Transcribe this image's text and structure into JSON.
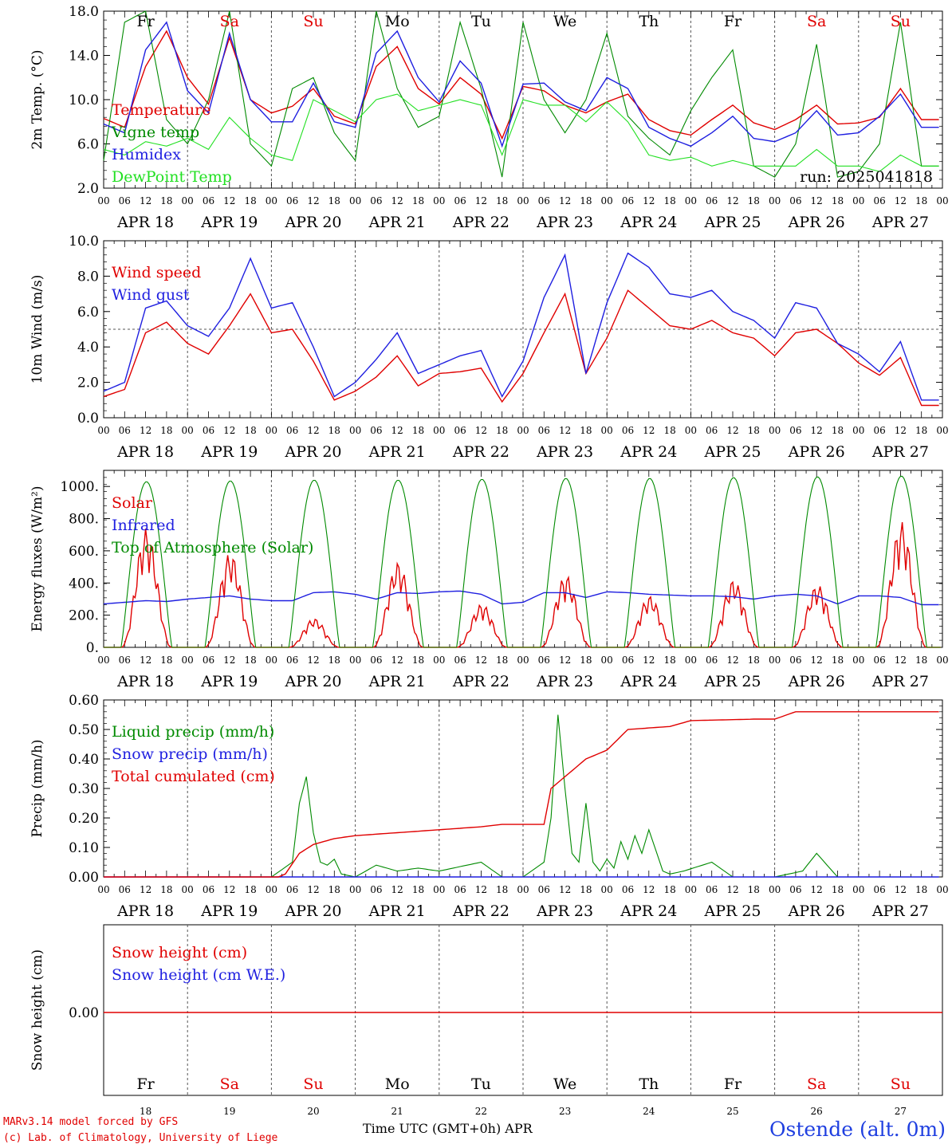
{
  "colors": {
    "red": "#e00000",
    "green": "#008a00",
    "blue": "#1f1fe0",
    "lightgreen": "#22e022",
    "grid": "#555555"
  },
  "day_labels": [
    {
      "name": "Fr",
      "color": "#000000"
    },
    {
      "name": "Sa",
      "color": "#e00000"
    },
    {
      "name": "Su",
      "color": "#e00000"
    },
    {
      "name": "Mo",
      "color": "#000000"
    },
    {
      "name": "Tu",
      "color": "#000000"
    },
    {
      "name": "We",
      "color": "#000000"
    },
    {
      "name": "Th",
      "color": "#000000"
    },
    {
      "name": "Fr",
      "color": "#000000"
    },
    {
      "name": "Sa",
      "color": "#e00000"
    },
    {
      "name": "Su",
      "color": "#e00000"
    }
  ],
  "date_labels": [
    "APR 18",
    "APR 19",
    "APR 20",
    "APR 21",
    "APR 22",
    "APR 23",
    "APR 24",
    "APR 25",
    "APR 26",
    "APR 27"
  ],
  "hour_labels": [
    "00",
    "06",
    "12",
    "18"
  ],
  "hour_end_label": "00",
  "bottom_day_numbers": [
    "18",
    "19",
    "20",
    "21",
    "22",
    "23",
    "24",
    "25",
    "26",
    "27"
  ],
  "run_label": "run: 2025041818",
  "footer": {
    "model_line": "MARv3.14 model forced by GFS",
    "copyright_line": "(c) Lab. of Climatology, University of Liege",
    "axis_title": "Time UTC (GMT+0h) APR",
    "station": "Ostende (alt. 0m)"
  },
  "chart_data": [
    {
      "type": "line",
      "ylabel": "2m Temp. (°C)",
      "ylim": [
        2,
        18
      ],
      "yticks": [
        "2.0",
        "6.0",
        "10.0",
        "14.0",
        "18.0"
      ],
      "x_unit": "hours since APR 18 00 UTC",
      "series": [
        {
          "name": "Temperature",
          "color": "red",
          "x": [
            0,
            6,
            12,
            18,
            24,
            30,
            36,
            42,
            48,
            54,
            60,
            66,
            72,
            78,
            84,
            90,
            96,
            102,
            108,
            114,
            120,
            126,
            132,
            138,
            144,
            150,
            156,
            162,
            168,
            174,
            180,
            186,
            192,
            198,
            204,
            210,
            216,
            222,
            228,
            234
          ],
          "values": [
            8.3,
            7.5,
            13,
            16.2,
            12,
            9.6,
            15.6,
            10,
            8.8,
            9.4,
            11,
            8.5,
            7.8,
            13,
            14.8,
            11,
            9.6,
            12,
            10.5,
            6.5,
            11.2,
            10.8,
            9.5,
            8.8,
            9.8,
            10.5,
            8.2,
            7.2,
            6.8,
            8.2,
            9.5,
            7.9,
            7.3,
            8.2,
            9.5,
            7.8,
            7.9,
            8.4,
            11,
            8.2
          ]
        },
        {
          "name": "Vigne temp",
          "color": "green",
          "x": [
            0,
            6,
            12,
            18,
            24,
            30,
            36,
            42,
            48,
            54,
            60,
            66,
            72,
            78,
            84,
            90,
            96,
            102,
            108,
            114,
            120,
            126,
            132,
            138,
            144,
            150,
            156,
            162,
            168,
            174,
            180,
            186,
            192,
            198,
            204,
            210,
            216,
            222,
            228,
            234
          ],
          "values": [
            4.5,
            17,
            18,
            8.2,
            6,
            10,
            18,
            6,
            4,
            11,
            12,
            7,
            4.5,
            18,
            11,
            7.5,
            8.5,
            17,
            11,
            3,
            17,
            10,
            7,
            10,
            16,
            8.5,
            6.5,
            5,
            9,
            12,
            14.5,
            4,
            3,
            6,
            15,
            3,
            3.5,
            6,
            17,
            4
          ]
        },
        {
          "name": "Humidex",
          "color": "blue",
          "x": [
            0,
            6,
            12,
            18,
            24,
            30,
            36,
            42,
            48,
            54,
            60,
            66,
            72,
            78,
            84,
            90,
            96,
            102,
            108,
            114,
            120,
            126,
            132,
            138,
            144,
            150,
            156,
            162,
            168,
            174,
            180,
            186,
            192,
            198,
            204,
            210,
            216,
            222,
            228,
            234
          ],
          "values": [
            7.8,
            7,
            14.5,
            17,
            10.8,
            8.8,
            16,
            10,
            8,
            8,
            11.5,
            8,
            7.5,
            14.2,
            16.2,
            12,
            9.8,
            13.5,
            11.5,
            5.8,
            11.4,
            11.5,
            9.8,
            9,
            12,
            11,
            7.5,
            6.5,
            5.8,
            7,
            8.5,
            6.5,
            6.2,
            7,
            9,
            6.8,
            7,
            8.5,
            10.5,
            7.5
          ]
        },
        {
          "name": "DewPoint Temp",
          "color": "lightgreen",
          "x": [
            0,
            6,
            12,
            18,
            24,
            30,
            36,
            42,
            48,
            54,
            60,
            66,
            72,
            78,
            84,
            90,
            96,
            102,
            108,
            114,
            120,
            126,
            132,
            138,
            144,
            150,
            156,
            162,
            168,
            174,
            180,
            186,
            192,
            198,
            204,
            210,
            216,
            222,
            228,
            234
          ],
          "values": [
            5.5,
            5,
            6.2,
            5.8,
            6.5,
            5.5,
            8.4,
            6.5,
            5,
            4.5,
            10,
            9,
            8,
            10,
            10.5,
            9,
            9.5,
            10,
            9.5,
            5,
            10,
            9.5,
            9.5,
            8,
            9.8,
            8,
            5,
            4.5,
            4.8,
            4,
            4.5,
            4,
            4,
            4,
            5.5,
            4,
            4,
            3.5,
            5,
            4
          ]
        }
      ]
    },
    {
      "type": "line",
      "ylabel": "10m Wind (m/s)",
      "ylim": [
        0,
        10
      ],
      "yticks": [
        "0.0",
        "2.0",
        "4.0",
        "6.0",
        "8.0",
        "10.0"
      ],
      "reference_line": 5,
      "series": [
        {
          "name": "Wind speed",
          "color": "red",
          "x": [
            0,
            6,
            12,
            18,
            24,
            30,
            36,
            42,
            48,
            54,
            60,
            66,
            72,
            78,
            84,
            90,
            96,
            102,
            108,
            114,
            120,
            126,
            132,
            138,
            144,
            150,
            156,
            162,
            168,
            174,
            180,
            186,
            192,
            198,
            204,
            210,
            216,
            222,
            228,
            234
          ],
          "values": [
            1.2,
            1.6,
            4.8,
            5.4,
            4.2,
            3.6,
            5.2,
            7,
            4.8,
            5,
            3.2,
            1,
            1.5,
            2.3,
            3.5,
            1.8,
            2.5,
            2.6,
            2.8,
            0.9,
            2.5,
            4.8,
            7,
            2.5,
            4.5,
            7.2,
            6.2,
            5.2,
            5,
            5.5,
            4.8,
            4.5,
            3.5,
            4.8,
            5,
            4.2,
            3.1,
            2.4,
            3.4,
            0.7
          ]
        },
        {
          "name": "Wind gust",
          "color": "blue",
          "x": [
            0,
            6,
            12,
            18,
            24,
            30,
            36,
            42,
            48,
            54,
            60,
            66,
            72,
            78,
            84,
            90,
            96,
            102,
            108,
            114,
            120,
            126,
            132,
            138,
            144,
            150,
            156,
            162,
            168,
            174,
            180,
            186,
            192,
            198,
            204,
            210,
            216,
            222,
            228,
            234
          ],
          "values": [
            1.5,
            2,
            6.2,
            6.6,
            5.2,
            4.6,
            6.2,
            9,
            6.2,
            6.5,
            4,
            1.2,
            2,
            3.3,
            4.8,
            2.5,
            3,
            3.5,
            3.8,
            1.2,
            3.2,
            6.8,
            9.2,
            2.5,
            6.5,
            9.3,
            8.5,
            7,
            6.8,
            7.2,
            6,
            5.5,
            4.5,
            6.5,
            6.2,
            4.2,
            3.6,
            2.6,
            4.3,
            1
          ]
        }
      ]
    },
    {
      "type": "line",
      "ylabel": "Energy fluxes (W/m²)",
      "ylim": [
        0,
        1100
      ],
      "yticks": [
        "0.",
        "200.",
        "400.",
        "600.",
        "800.",
        "1000."
      ],
      "series": [
        {
          "name": "Solar",
          "color": "red",
          "daily_peaks": [
            740,
            590,
            180,
            530,
            270,
            450,
            320,
            420,
            390,
            780
          ]
        },
        {
          "name": "Infrared",
          "color": "blue",
          "x": [
            0,
            6,
            12,
            18,
            24,
            30,
            36,
            42,
            48,
            54,
            60,
            66,
            72,
            78,
            84,
            90,
            96,
            102,
            108,
            114,
            120,
            126,
            132,
            138,
            144,
            150,
            156,
            162,
            168,
            174,
            180,
            186,
            192,
            198,
            204,
            210,
            216,
            222,
            228,
            234
          ],
          "values": [
            270,
            280,
            290,
            285,
            300,
            310,
            320,
            300,
            290,
            290,
            340,
            345,
            330,
            300,
            340,
            335,
            345,
            350,
            330,
            270,
            280,
            340,
            340,
            310,
            345,
            340,
            330,
            325,
            320,
            320,
            315,
            300,
            320,
            330,
            320,
            270,
            320,
            320,
            310,
            265
          ]
        },
        {
          "name": "Top of Atmosphere (Solar)",
          "color": "green",
          "daily_peaks": [
            1030,
            1035,
            1040,
            1040,
            1045,
            1050,
            1050,
            1055,
            1060,
            1065
          ]
        }
      ]
    },
    {
      "type": "line",
      "ylabel": "Precip (mm/h)",
      "ylim": [
        0,
        0.6
      ],
      "yticks": [
        "0.00",
        "0.10",
        "0.20",
        "0.30",
        "0.40",
        "0.50",
        "0.60"
      ],
      "series": [
        {
          "name": "Liquid precip (mm/h)",
          "color": "green",
          "x": [
            0,
            48,
            54,
            56,
            58,
            60,
            62,
            64,
            66,
            68,
            72,
            78,
            84,
            90,
            96,
            108,
            114,
            120,
            126,
            128,
            130,
            132,
            134,
            136,
            138,
            140,
            142,
            144,
            146,
            148,
            150,
            152,
            154,
            156,
            160,
            162,
            166,
            174,
            180,
            192,
            200,
            204,
            210,
            234
          ],
          "values": [
            0,
            0,
            0.05,
            0.25,
            0.34,
            0.15,
            0.05,
            0.04,
            0.06,
            0.01,
            0,
            0.04,
            0.02,
            0.03,
            0.02,
            0.05,
            0,
            0,
            0.05,
            0.2,
            0.55,
            0.3,
            0.08,
            0.05,
            0.25,
            0.05,
            0.02,
            0.06,
            0.03,
            0.12,
            0.06,
            0.14,
            0.08,
            0.16,
            0.02,
            0.01,
            0.02,
            0.05,
            0,
            0,
            0.02,
            0.08,
            0,
            0
          ]
        },
        {
          "name": "Snow precip (mm/h)",
          "color": "blue",
          "x": [
            0,
            234
          ],
          "values": [
            0,
            0
          ]
        },
        {
          "name": "Total cumulated (cm)",
          "color": "red",
          "x": [
            0,
            50,
            52,
            56,
            60,
            66,
            72,
            84,
            96,
            108,
            114,
            120,
            126,
            128,
            132,
            138,
            144,
            150,
            162,
            168,
            186,
            192,
            198,
            234
          ],
          "values": [
            0,
            0,
            0.01,
            0.08,
            0.11,
            0.13,
            0.14,
            0.15,
            0.16,
            0.17,
            0.178,
            0.178,
            0.178,
            0.3,
            0.34,
            0.4,
            0.43,
            0.5,
            0.51,
            0.53,
            0.535,
            0.535,
            0.56,
            0.56
          ]
        }
      ]
    },
    {
      "type": "line",
      "ylabel": "Snow height (cm)",
      "yticks": [
        "0.00"
      ],
      "series": [
        {
          "name": "Snow height (cm)",
          "color": "red",
          "x": [
            0,
            234
          ],
          "values": [
            0,
            0
          ]
        },
        {
          "name": "Snow height (cm W.E.)",
          "color": "blue",
          "x": [
            0,
            234
          ],
          "values": [
            0,
            0
          ]
        }
      ]
    }
  ]
}
